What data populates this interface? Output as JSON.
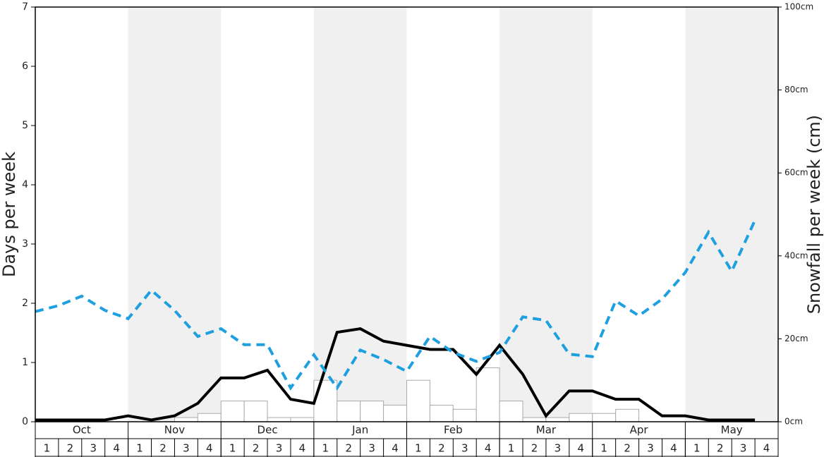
{
  "chart_data": {
    "type": "combo",
    "y_label": "Days per week",
    "y2_label": "Snowfall per week (cm)",
    "months": [
      "Oct",
      "Nov",
      "Dec",
      "Jan",
      "Feb",
      "Mar",
      "Apr",
      "May"
    ],
    "categories": [
      "1",
      "2",
      "3",
      "4",
      "1",
      "2",
      "3",
      "4",
      "1",
      "2",
      "3",
      "4",
      "1",
      "2",
      "3",
      "4",
      "1",
      "2",
      "3",
      "4",
      "1",
      "2",
      "3",
      "4",
      "1",
      "2",
      "3",
      "4",
      "1",
      "2",
      "3",
      "4"
    ],
    "ylim": [
      0,
      7
    ],
    "yticks": [
      0,
      1,
      2,
      3,
      4,
      5,
      6,
      7
    ],
    "y2lim": [
      0,
      100
    ],
    "y2ticks": [
      {
        "value": 0,
        "label": "0cm"
      },
      {
        "value": 20,
        "label": "20cm"
      },
      {
        "value": 40,
        "label": "40cm"
      },
      {
        "value": 60,
        "label": "60cm"
      },
      {
        "value": 80,
        "label": "80cm"
      },
      {
        "value": 100,
        "label": "100cm"
      }
    ],
    "shade_color": "#f0f0f0",
    "series": [
      {
        "type": "bar",
        "axis": "y2",
        "color": "#ffffff",
        "stroke": "#aaaaaa",
        "values": [
          0,
          0,
          0,
          0,
          0,
          0,
          1,
          2,
          5,
          5,
          1,
          1,
          10,
          5,
          5,
          4,
          10,
          4,
          3,
          13,
          5,
          1,
          1,
          2,
          2,
          3,
          0,
          0,
          0,
          0,
          0,
          0
        ]
      },
      {
        "type": "line",
        "color": "#000000",
        "dashed": false,
        "values": [
          0.03,
          0.03,
          0.03,
          0.03,
          0.1,
          0.03,
          0.1,
          0.31,
          0.74,
          0.74,
          0.87,
          0.38,
          0.31,
          1.51,
          1.57,
          1.36,
          1.29,
          1.22,
          1.22,
          0.8,
          1.29,
          0.8,
          0.1,
          0.52,
          0.52,
          0.38,
          0.38,
          0.1,
          0.1,
          0.03,
          0.03,
          0.03
        ]
      },
      {
        "type": "line",
        "color": "#1e9fe0",
        "dashed": true,
        "values": [
          1.86,
          1.96,
          2.12,
          1.88,
          1.74,
          2.22,
          1.88,
          1.44,
          1.57,
          1.3,
          1.3,
          0.57,
          1.13,
          0.57,
          1.21,
          1.05,
          0.85,
          1.44,
          1.17,
          1.02,
          1.17,
          1.77,
          1.71,
          1.14,
          1.1,
          2.04,
          1.79,
          2.07,
          2.52,
          3.2,
          2.54,
          3.4
        ]
      }
    ]
  }
}
